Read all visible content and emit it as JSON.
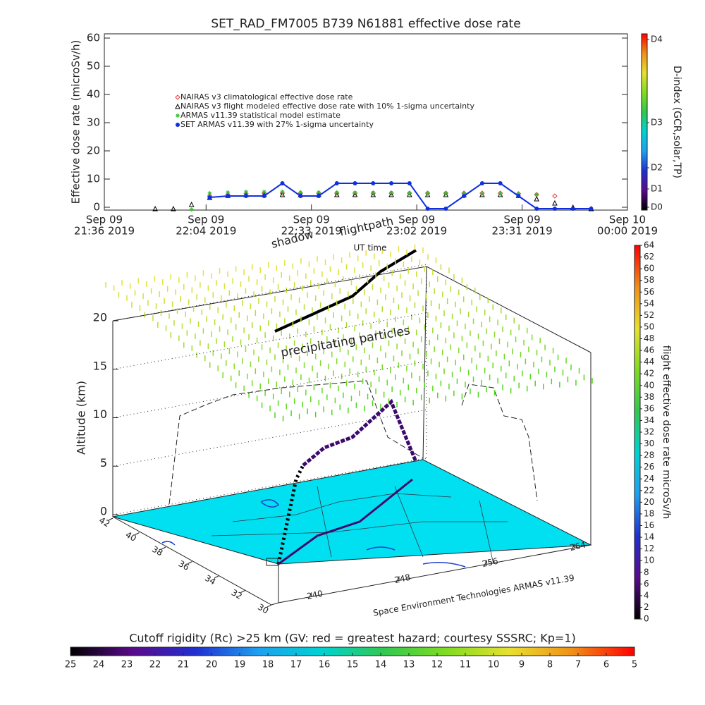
{
  "chart_data": [
    {
      "type": "scatter",
      "title": "SET_RAD_FM7005  B739 N61881 effective dose rate",
      "ylabel": "Effective dose rate (microSv/h)",
      "xlabel": "UT time",
      "xlim": [
        "2019-09-09 21:36",
        "2019-09-10 00:00"
      ],
      "xticks": [
        {
          "value": "2019-09-09 21:36",
          "label": [
            "Sep 09",
            "21:36 2019"
          ]
        },
        {
          "value": "2019-09-09 22:04",
          "label": [
            "Sep 09",
            "22:04 2019"
          ]
        },
        {
          "value": "2019-09-09 22:33",
          "label": [
            "Sep 09",
            "22:33 2019"
          ]
        },
        {
          "value": "2019-09-09 23:02",
          "label": [
            "Sep 09",
            "23:02 2019"
          ]
        },
        {
          "value": "2019-09-09 23:31",
          "label": [
            "Sep 09",
            "23:31 2019"
          ]
        },
        {
          "value": "2019-09-10 00:00",
          "label": [
            "Sep 10",
            "00:00 2019"
          ]
        }
      ],
      "ylim": [
        -1,
        61.5
      ],
      "yticks": [
        0,
        10,
        20,
        30,
        40,
        50,
        60
      ],
      "x": [
        "2019-09-09 21:50",
        "2019-09-09 21:55",
        "2019-09-09 22:00",
        "2019-09-09 22:05",
        "2019-09-09 22:10",
        "2019-09-09 22:15",
        "2019-09-09 22:20",
        "2019-09-09 22:25",
        "2019-09-09 22:30",
        "2019-09-09 22:35",
        "2019-09-09 22:40",
        "2019-09-09 22:45",
        "2019-09-09 22:50",
        "2019-09-09 22:55",
        "2019-09-09 23:00",
        "2019-09-09 23:05",
        "2019-09-09 23:10",
        "2019-09-09 23:15",
        "2019-09-09 23:20",
        "2019-09-09 23:25",
        "2019-09-09 23:30",
        "2019-09-09 23:35",
        "2019-09-09 23:40",
        "2019-09-09 23:45",
        "2019-09-09 23:50"
      ],
      "series": [
        {
          "name": "NAIRAS v3 climatological effective dose rate",
          "color": "#e04040",
          "marker": "diamond",
          "values": [
            null,
            null,
            null,
            4,
            4.5,
            4.8,
            5,
            5,
            5,
            5,
            5,
            5,
            5,
            5,
            5,
            5,
            5,
            5,
            5,
            5,
            4.8,
            4.5,
            4,
            null,
            null
          ]
        },
        {
          "name": "NAIRAS v3 flight modeled effective dose rate with 10% 1-sigma uncertainty",
          "color": "#000000",
          "marker": "triangle",
          "values": [
            -0.5,
            -0.5,
            1,
            3.5,
            4.2,
            4.5,
            4.5,
            4.5,
            4.5,
            4.5,
            4.5,
            4.5,
            4.5,
            4.5,
            4.5,
            4.5,
            4.5,
            4.5,
            4.5,
            4.5,
            4.2,
            3,
            1.5,
            0,
            -0.5
          ]
        },
        {
          "name": "ARMAS v11.39 statistical model estimate",
          "color": "#30c030",
          "marker": "asterisk",
          "values": [
            null,
            null,
            -0.8,
            5,
            5.3,
            5.5,
            5.5,
            5.5,
            5.3,
            5.3,
            5.3,
            5.2,
            5.2,
            5.2,
            5,
            5,
            5,
            5,
            4.8,
            4.8,
            4.8,
            4.5,
            null,
            null,
            null
          ]
        },
        {
          "name": "SET ARMAS v11.39 with 27% 1-sigma uncertainty",
          "color": "#1030e0",
          "marker": "circle",
          "line": true,
          "values": [
            null,
            null,
            null,
            3.5,
            4,
            4,
            4,
            8.5,
            4,
            4,
            8.5,
            8.5,
            8.5,
            8.5,
            8.5,
            -0.5,
            -0.5,
            4,
            8.5,
            8.5,
            4,
            -0.5,
            -0.5,
            -0.5,
            -0.5
          ]
        }
      ]
    },
    {
      "type": "colorbar",
      "orient": "vertical",
      "title": "D-index (GCR,solar,TP)",
      "ylim": [
        -1,
        61.5
      ],
      "yticks": [
        {
          "value": 0,
          "label": "D0"
        },
        {
          "value": 6.5,
          "label": "D1"
        },
        {
          "value": 14,
          "label": "D2"
        },
        {
          "value": 30,
          "label": "D3"
        },
        {
          "value": 59.5,
          "label": "D4"
        }
      ],
      "colors": [
        "#000000",
        "#5a0a8c",
        "#2030d0",
        "#1ea0f0",
        "#00d2d2",
        "#30c850",
        "#80dc20",
        "#e8e030",
        "#f09018",
        "#ff0000"
      ]
    },
    {
      "type": "surface3d",
      "zlabel": "Altitude (km)",
      "zlim": [
        0,
        20
      ],
      "zticks": [
        0,
        5,
        10,
        15,
        20
      ],
      "latlim": [
        30,
        42
      ],
      "latticks": [
        42,
        40,
        38,
        36,
        34,
        32,
        30
      ],
      "lonlim": [
        237,
        265.5
      ],
      "lonticks": [
        240,
        248,
        256,
        264
      ],
      "annotations": [
        "shadow",
        "flightpath",
        "precipitating particles"
      ],
      "credit": "Space Environment Technologies ARMAS v11.39"
    },
    {
      "type": "colorbar",
      "orient": "vertical",
      "title": "flight effective dose rate microSv/h",
      "ylim": [
        0,
        64
      ],
      "yticks": [
        0,
        2,
        4,
        6,
        8,
        10,
        12,
        14,
        16,
        18,
        20,
        22,
        24,
        26,
        28,
        30,
        32,
        34,
        36,
        38,
        40,
        42,
        44,
        46,
        48,
        50,
        52,
        54,
        56,
        58,
        60,
        62,
        64
      ],
      "colors": [
        "#000000",
        "#5a0a8c",
        "#2030d0",
        "#1ea0f0",
        "#00d2d2",
        "#30c850",
        "#80dc20",
        "#e8e030",
        "#f09018",
        "#ff0000"
      ]
    },
    {
      "type": "colorbar",
      "orient": "horizontal",
      "title": "Cutoff rigidity (Rc) >25 km (GV: red = greatest hazard; courtesy SSSRC; Kp=1)",
      "xlim": [
        25,
        5
      ],
      "xticks": [
        25,
        24,
        23,
        22,
        21,
        20,
        19,
        18,
        17,
        16,
        15,
        14,
        13,
        12,
        11,
        10,
        9,
        8,
        7,
        6,
        5
      ],
      "colors": [
        "#000000",
        "#5a0a8c",
        "#2030d0",
        "#1ea0f0",
        "#00d2d2",
        "#30c850",
        "#80dc20",
        "#e8e030",
        "#f09018",
        "#ff0000"
      ]
    }
  ]
}
